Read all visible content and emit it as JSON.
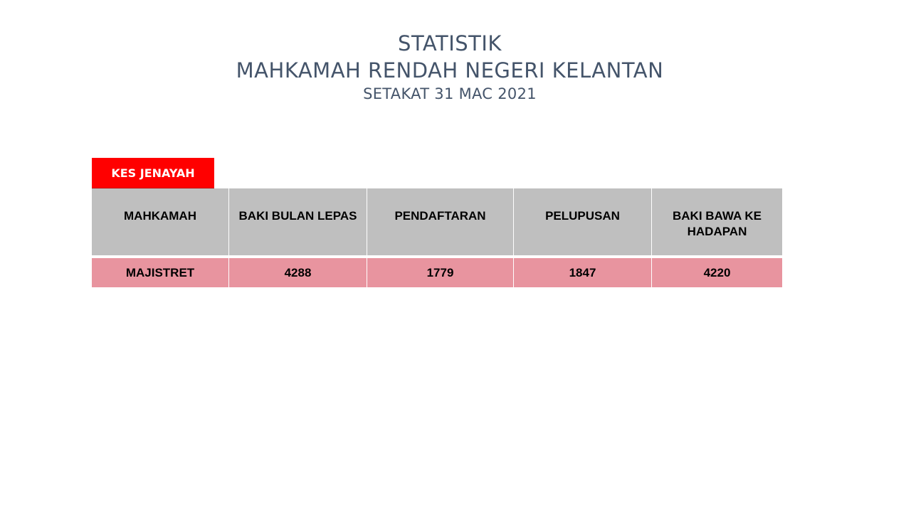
{
  "title": {
    "line1": "STATISTIK",
    "line2": "MAHKAMAH RENDAH NEGERI KELANTAN",
    "line3": "SETAKAT 31 MAC 2021"
  },
  "section_label": "KES JENAYAH",
  "table": {
    "headers": [
      "MAHKAMAH",
      "BAKI BULAN LEPAS",
      "PENDAFTARAN",
      "PELUPUSAN",
      "BAKI BAWA KE HADAPAN"
    ],
    "rows": [
      [
        "MAJISTRET",
        "4288",
        "1779",
        "1847",
        "4220"
      ]
    ]
  },
  "colors": {
    "title": "#44546a",
    "section_label_bg": "#ff0000",
    "header_bg": "#bfbfbf",
    "row_bg": "#e8949f"
  }
}
